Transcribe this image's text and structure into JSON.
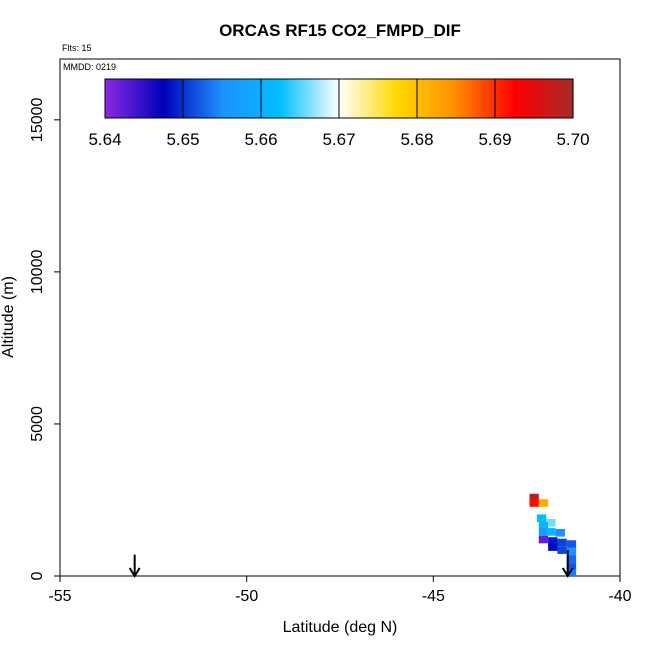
{
  "chart_data": {
    "type": "heatmap",
    "title": "ORCAS RF15 CO2_FMPD_DIF",
    "annotations": {
      "flights": "Flts: 15",
      "mmdd": "MMDD: 0219"
    },
    "xlabel": "Latitude (deg N)",
    "ylabel": "Altitude (m)",
    "xlim": [
      -55,
      -40
    ],
    "ylim": [
      0,
      17000
    ],
    "x_ticks": [
      -55,
      -50,
      -45,
      -40
    ],
    "x_tick_labels": [
      "-55",
      "-50",
      "-45",
      "-40"
    ],
    "y_ticks": [
      0,
      5000,
      10000,
      15000
    ],
    "y_tick_labels": [
      "0",
      "5000",
      "10000",
      "15000"
    ],
    "colorbar": {
      "min": 5.64,
      "max": 5.7,
      "ticks": [
        5.64,
        5.65,
        5.66,
        5.67,
        5.68,
        5.69,
        5.7
      ],
      "tick_labels": [
        "5.64",
        "5.65",
        "5.66",
        "5.67",
        "5.68",
        "5.69",
        "5.70"
      ],
      "colors": [
        "#8a2be2",
        "#0000b8",
        "#1e90ff",
        "#00bfff",
        "#ffffff",
        "#ffd700",
        "#ff8c00",
        "#ff0000",
        "#a52a2a"
      ]
    },
    "cells_lat_width": 0.25,
    "cells_alt_height": 250,
    "cells": [
      {
        "lat": -42.3,
        "alt": 2580,
        "value": 5.698
      },
      {
        "lat": -42.3,
        "alt": 2400,
        "value": 5.692
      },
      {
        "lat": -42.05,
        "alt": 2400,
        "value": 5.682
      },
      {
        "lat": -42.1,
        "alt": 1900,
        "value": 5.662
      },
      {
        "lat": -41.85,
        "alt": 1750,
        "value": 5.666
      },
      {
        "lat": -42.05,
        "alt": 1650,
        "value": 5.661
      },
      {
        "lat": -42.05,
        "alt": 1450,
        "value": 5.657
      },
      {
        "lat": -41.85,
        "alt": 1450,
        "value": 5.661
      },
      {
        "lat": -41.6,
        "alt": 1420,
        "value": 5.655
      },
      {
        "lat": -42.05,
        "alt": 1200,
        "value": 5.642
      },
      {
        "lat": -41.8,
        "alt": 1150,
        "value": 5.649
      },
      {
        "lat": -41.55,
        "alt": 1100,
        "value": 5.651
      },
      {
        "lat": -41.3,
        "alt": 1050,
        "value": 5.652
      },
      {
        "lat": -41.8,
        "alt": 950,
        "value": 5.648
      },
      {
        "lat": -41.3,
        "alt": 800,
        "value": 5.655
      },
      {
        "lat": -41.55,
        "alt": 850,
        "value": 5.651
      },
      {
        "lat": -41.3,
        "alt": 550,
        "value": 5.653
      },
      {
        "lat": -41.3,
        "alt": 300,
        "value": 5.652
      },
      {
        "lat": -41.3,
        "alt": 100,
        "value": 5.654
      }
    ],
    "arrows": [
      {
        "lat": -53.0,
        "alt_top": 700,
        "alt_bottom": 0
      },
      {
        "lat": -41.4,
        "alt_top": 850,
        "alt_bottom": 0
      }
    ],
    "grid": false
  }
}
